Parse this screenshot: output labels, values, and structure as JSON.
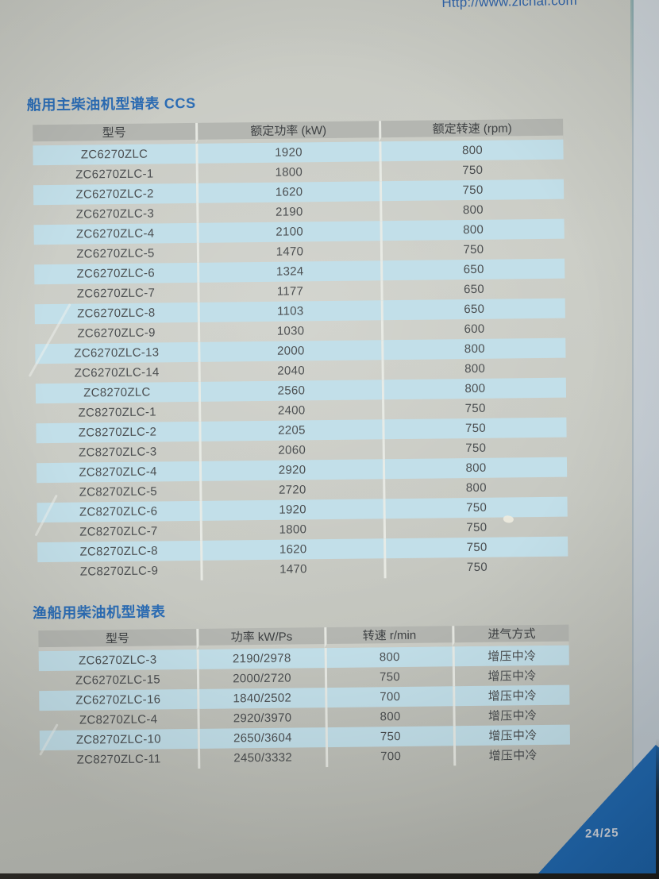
{
  "page": {
    "website_url": "Http://www.zichai.com",
    "page_number": "24/25"
  },
  "tables": [
    {
      "title": "船用主柴油机型谱表 CCS",
      "columns": [
        "型号",
        "额定功率 (kW)",
        "额定转速 (rpm)"
      ],
      "rows": [
        [
          "ZC6270ZLC",
          "1920",
          "800"
        ],
        [
          "ZC6270ZLC-1",
          "1800",
          "750"
        ],
        [
          "ZC6270ZLC-2",
          "1620",
          "750"
        ],
        [
          "ZC6270ZLC-3",
          "2190",
          "800"
        ],
        [
          "ZC6270ZLC-4",
          "2100",
          "800"
        ],
        [
          "ZC6270ZLC-5",
          "1470",
          "750"
        ],
        [
          "ZC6270ZLC-6",
          "1324",
          "650"
        ],
        [
          "ZC6270ZLC-7",
          "1177",
          "650"
        ],
        [
          "ZC6270ZLC-8",
          "1103",
          "650"
        ],
        [
          "ZC6270ZLC-9",
          "1030",
          "600"
        ],
        [
          "ZC6270ZLC-13",
          "2000",
          "800"
        ],
        [
          "ZC6270ZLC-14",
          "2040",
          "800"
        ],
        [
          "ZC8270ZLC",
          "2560",
          "800"
        ],
        [
          "ZC8270ZLC-1",
          "2400",
          "750"
        ],
        [
          "ZC8270ZLC-2",
          "2205",
          "750"
        ],
        [
          "ZC8270ZLC-3",
          "2060",
          "750"
        ],
        [
          "ZC8270ZLC-4",
          "2920",
          "800"
        ],
        [
          "ZC8270ZLC-5",
          "2720",
          "800"
        ],
        [
          "ZC8270ZLC-6",
          "1920",
          "750"
        ],
        [
          "ZC8270ZLC-7",
          "1800",
          "750"
        ],
        [
          "ZC8270ZLC-8",
          "1620",
          "750"
        ],
        [
          "ZC8270ZLC-9",
          "1470",
          "750"
        ]
      ]
    },
    {
      "title": "渔船用柴油机型谱表",
      "columns": [
        "型号",
        "功率 kW/Ps",
        "转速 r/min",
        "进气方式"
      ],
      "rows": [
        [
          "ZC6270ZLC-3",
          "2190/2978",
          "800",
          "增压中冷"
        ],
        [
          "ZC6270ZLC-15",
          "2000/2720",
          "750",
          "增压中冷"
        ],
        [
          "ZC6270ZLC-16",
          "1840/2502",
          "700",
          "增压中冷"
        ],
        [
          "ZC8270ZLC-4",
          "2920/3970",
          "800",
          "增压中冷"
        ],
        [
          "ZC8270ZLC-10",
          "2650/3604",
          "750",
          "增压中冷"
        ],
        [
          "ZC8270ZLC-11",
          "2450/3332",
          "700",
          "增压中冷"
        ]
      ]
    }
  ],
  "colors": {
    "title_blue": "#2b6cb4",
    "url_blue": "#2f63a9",
    "header_gray": "#b4b6b1",
    "row_blue": "#c2dfe9",
    "text_dark": "#4b4e50",
    "corner_blue": "#2066ac",
    "page_number_text": "#c9cfd8",
    "paper": "#c9cbc4"
  }
}
